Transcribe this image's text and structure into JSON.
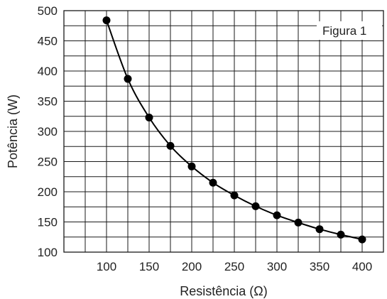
{
  "chart_data": {
    "type": "scatter",
    "title": "",
    "annotation": "Figura 1",
    "xlabel": "Resistência (Ω)",
    "ylabel": "Potência (W)",
    "xlim": [
      50,
      425
    ],
    "ylim": [
      100,
      500
    ],
    "xticks": [
      100,
      150,
      200,
      250,
      300,
      350,
      400
    ],
    "yticks": [
      100,
      150,
      200,
      250,
      300,
      350,
      400,
      450,
      500
    ],
    "grid": true,
    "fit_curve": "smooth line through points",
    "series": [
      {
        "x": [
          100,
          125,
          150,
          175,
          200,
          225,
          250,
          275,
          300,
          325,
          350,
          375,
          400
        ],
        "y": [
          484,
          387,
          323,
          276,
          242,
          215,
          194,
          176,
          161,
          149,
          138,
          129,
          121
        ]
      }
    ]
  }
}
